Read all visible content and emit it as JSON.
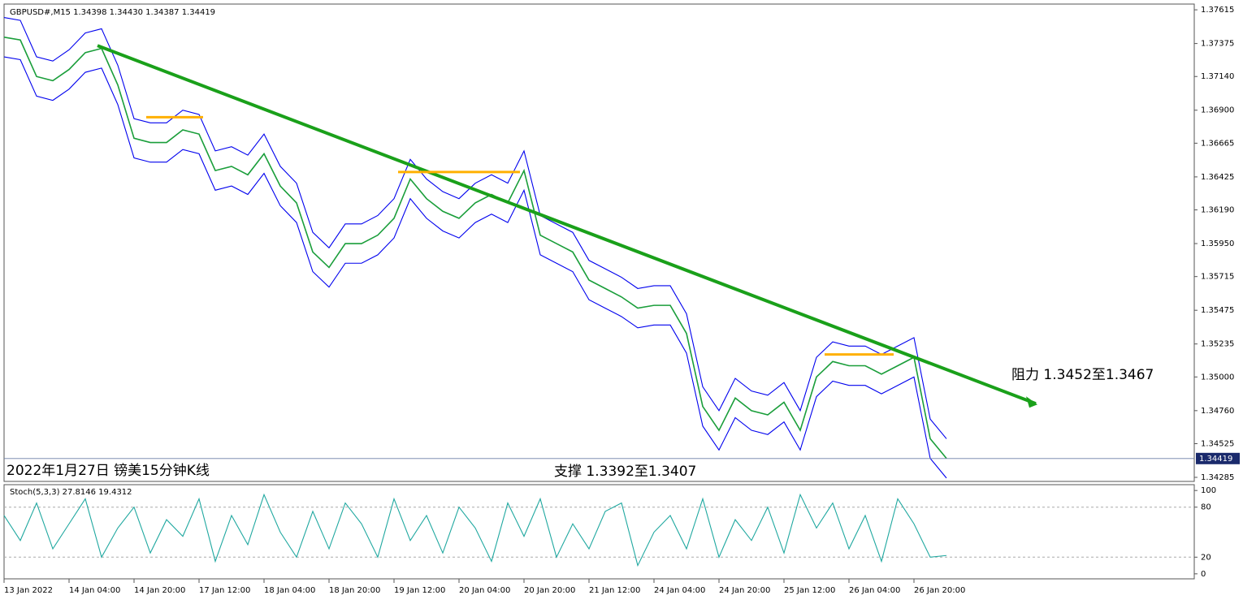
{
  "chart_data": [
    {
      "type": "line",
      "title": "GBPUSD#,M15  1.34398 1.34430 1.34387 1.34419",
      "categories": [
        "13 Jan 2022",
        null,
        null,
        null,
        "14 Jan 04:00",
        null,
        null,
        null,
        "14 Jan 20:00",
        null,
        null,
        null,
        "17 Jan 12:00",
        null,
        null,
        null,
        "18 Jan 04:00",
        null,
        null,
        null,
        "18 Jan 20:00",
        null,
        null,
        null,
        "19 Jan 12:00",
        null,
        null,
        null,
        "20 Jan 04:00",
        null,
        null,
        null,
        "20 Jan 20:00",
        null,
        null,
        null,
        "21 Jan 12:00",
        null,
        null,
        null,
        "24 Jan 04:00",
        null,
        null,
        null,
        "24 Jan 20:00",
        null,
        null,
        null,
        "25 Jan 12:00",
        null,
        null,
        null,
        "26 Jan 04:00",
        null,
        null,
        null,
        "26 Jan 20:00",
        null,
        null
      ],
      "series": [
        {
          "color": "#0000ee",
          "values": [
            1.3756,
            1.3754,
            1.3728,
            1.3725,
            1.3733,
            1.3745,
            1.3748,
            1.3722,
            1.3684,
            1.3681,
            1.3681,
            1.369,
            1.3687,
            1.3661,
            1.3664,
            1.3658,
            1.3673,
            1.365,
            1.3638,
            1.3603,
            1.3592,
            1.3609,
            1.3609,
            1.3615,
            1.3627,
            1.3655,
            1.3641,
            1.3632,
            1.3627,
            1.3638,
            1.3644,
            1.3638,
            1.3661,
            1.3615,
            1.3609,
            1.3603,
            1.3583,
            1.3577,
            1.3571,
            1.3563,
            1.3565,
            1.3565,
            1.3545,
            1.3493,
            1.3476,
            1.3499,
            1.349,
            1.3487,
            1.3496,
            1.3476,
            1.3514,
            1.3525,
            1.3522,
            1.3522,
            1.3516,
            1.3522,
            1.3528,
            1.347,
            1.3456
          ]
        },
        {
          "color": "#0000ee",
          "values": [
            1.3728,
            1.3726,
            1.37,
            1.3697,
            1.3705,
            1.3717,
            1.372,
            1.3694,
            1.3656,
            1.3653,
            1.3653,
            1.3662,
            1.3659,
            1.3633,
            1.3636,
            1.363,
            1.3645,
            1.3622,
            1.361,
            1.3575,
            1.3564,
            1.3581,
            1.3581,
            1.3587,
            1.3599,
            1.3627,
            1.3613,
            1.3604,
            1.3599,
            1.361,
            1.3616,
            1.361,
            1.3633,
            1.3587,
            1.3581,
            1.3575,
            1.3555,
            1.3549,
            1.3543,
            1.3535,
            1.3537,
            1.3537,
            1.3517,
            1.3465,
            1.3448,
            1.3471,
            1.3462,
            1.3459,
            1.3468,
            1.3448,
            1.3486,
            1.3497,
            1.3494,
            1.3494,
            1.3488,
            1.3494,
            1.35,
            1.3442,
            1.3428
          ]
        },
        {
          "color": "#1a9e3a",
          "values": [
            1.3742,
            1.374,
            1.3714,
            1.3711,
            1.3719,
            1.3731,
            1.3734,
            1.3708,
            1.367,
            1.3667,
            1.3667,
            1.3676,
            1.3673,
            1.3647,
            1.365,
            1.3644,
            1.3659,
            1.3636,
            1.3624,
            1.3589,
            1.3578,
            1.3595,
            1.3595,
            1.3601,
            1.3613,
            1.3641,
            1.3627,
            1.3618,
            1.3613,
            1.3624,
            1.363,
            1.3624,
            1.3647,
            1.3601,
            1.3595,
            1.3589,
            1.3569,
            1.3563,
            1.3557,
            1.3549,
            1.3551,
            1.3551,
            1.3531,
            1.3479,
            1.3462,
            1.3485,
            1.3476,
            1.3473,
            1.3482,
            1.3462,
            1.35,
            1.3511,
            1.3508,
            1.3508,
            1.3502,
            1.3508,
            1.3514,
            1.3456,
            1.3442
          ]
        }
      ],
      "ylim": [
        1.34256,
        1.37656
      ],
      "yticks": [
        1.37615,
        1.37375,
        {
          "value": 1.3714,
          "label": "1.37140"
        },
        {
          "value": 1.369,
          "label": "1.36900"
        },
        1.36665,
        1.36425,
        {
          "value": 1.3619,
          "label": "1.36190"
        },
        {
          "value": 1.3595,
          "label": "1.35950"
        },
        1.35715,
        1.35475,
        1.35235,
        {
          "value": 1.35,
          "label": "1.35000"
        },
        {
          "value": 1.3476,
          "label": "1.34760"
        },
        1.34525,
        1.34285
      ],
      "current": 1.34419,
      "lines": [
        {
          "color": "#1aa01a",
          "x": [
            5.75,
            63.5
          ],
          "y": [
            1.3736,
            1.3481
          ]
        },
        {
          "color": "#ffb000",
          "x": [
            8.75,
            12.25
          ],
          "y": [
            1.3685,
            1.3685
          ]
        },
        {
          "color": "#ffb000",
          "x": [
            24.25,
            31.75
          ],
          "y": [
            1.3646,
            1.3646
          ]
        },
        {
          "color": "#ffb000",
          "x": [
            50.5,
            54.75
          ],
          "y": [
            1.3516,
            1.3516
          ]
        }
      ],
      "annotations": [
        "阻力 1.3452至1.3467",
        "支撑 1.3392至1.3407",
        "2022年1月27日 镑美15分钟K线"
      ]
    },
    {
      "type": "line",
      "title": "Stoch(5,3,3) 27.8146 19.4312",
      "series": [
        {
          "color": "#20a8a0",
          "values": [
            70,
            40,
            85,
            30,
            60,
            90,
            20,
            55,
            80,
            25,
            65,
            45,
            90,
            15,
            70,
            35,
            95,
            50,
            20,
            75,
            30,
            85,
            60,
            20,
            90,
            40,
            70,
            25,
            80,
            55,
            15,
            85,
            45,
            90,
            20,
            60,
            30,
            75,
            85,
            10,
            50,
            70,
            30,
            90,
            20,
            65,
            40,
            80,
            25,
            95,
            55,
            85,
            30,
            70,
            15,
            90,
            60,
            20,
            22
          ]
        }
      ],
      "ylim": [
        -6,
        107
      ],
      "yticks": [
        0,
        20,
        80,
        100
      ]
    }
  ]
}
